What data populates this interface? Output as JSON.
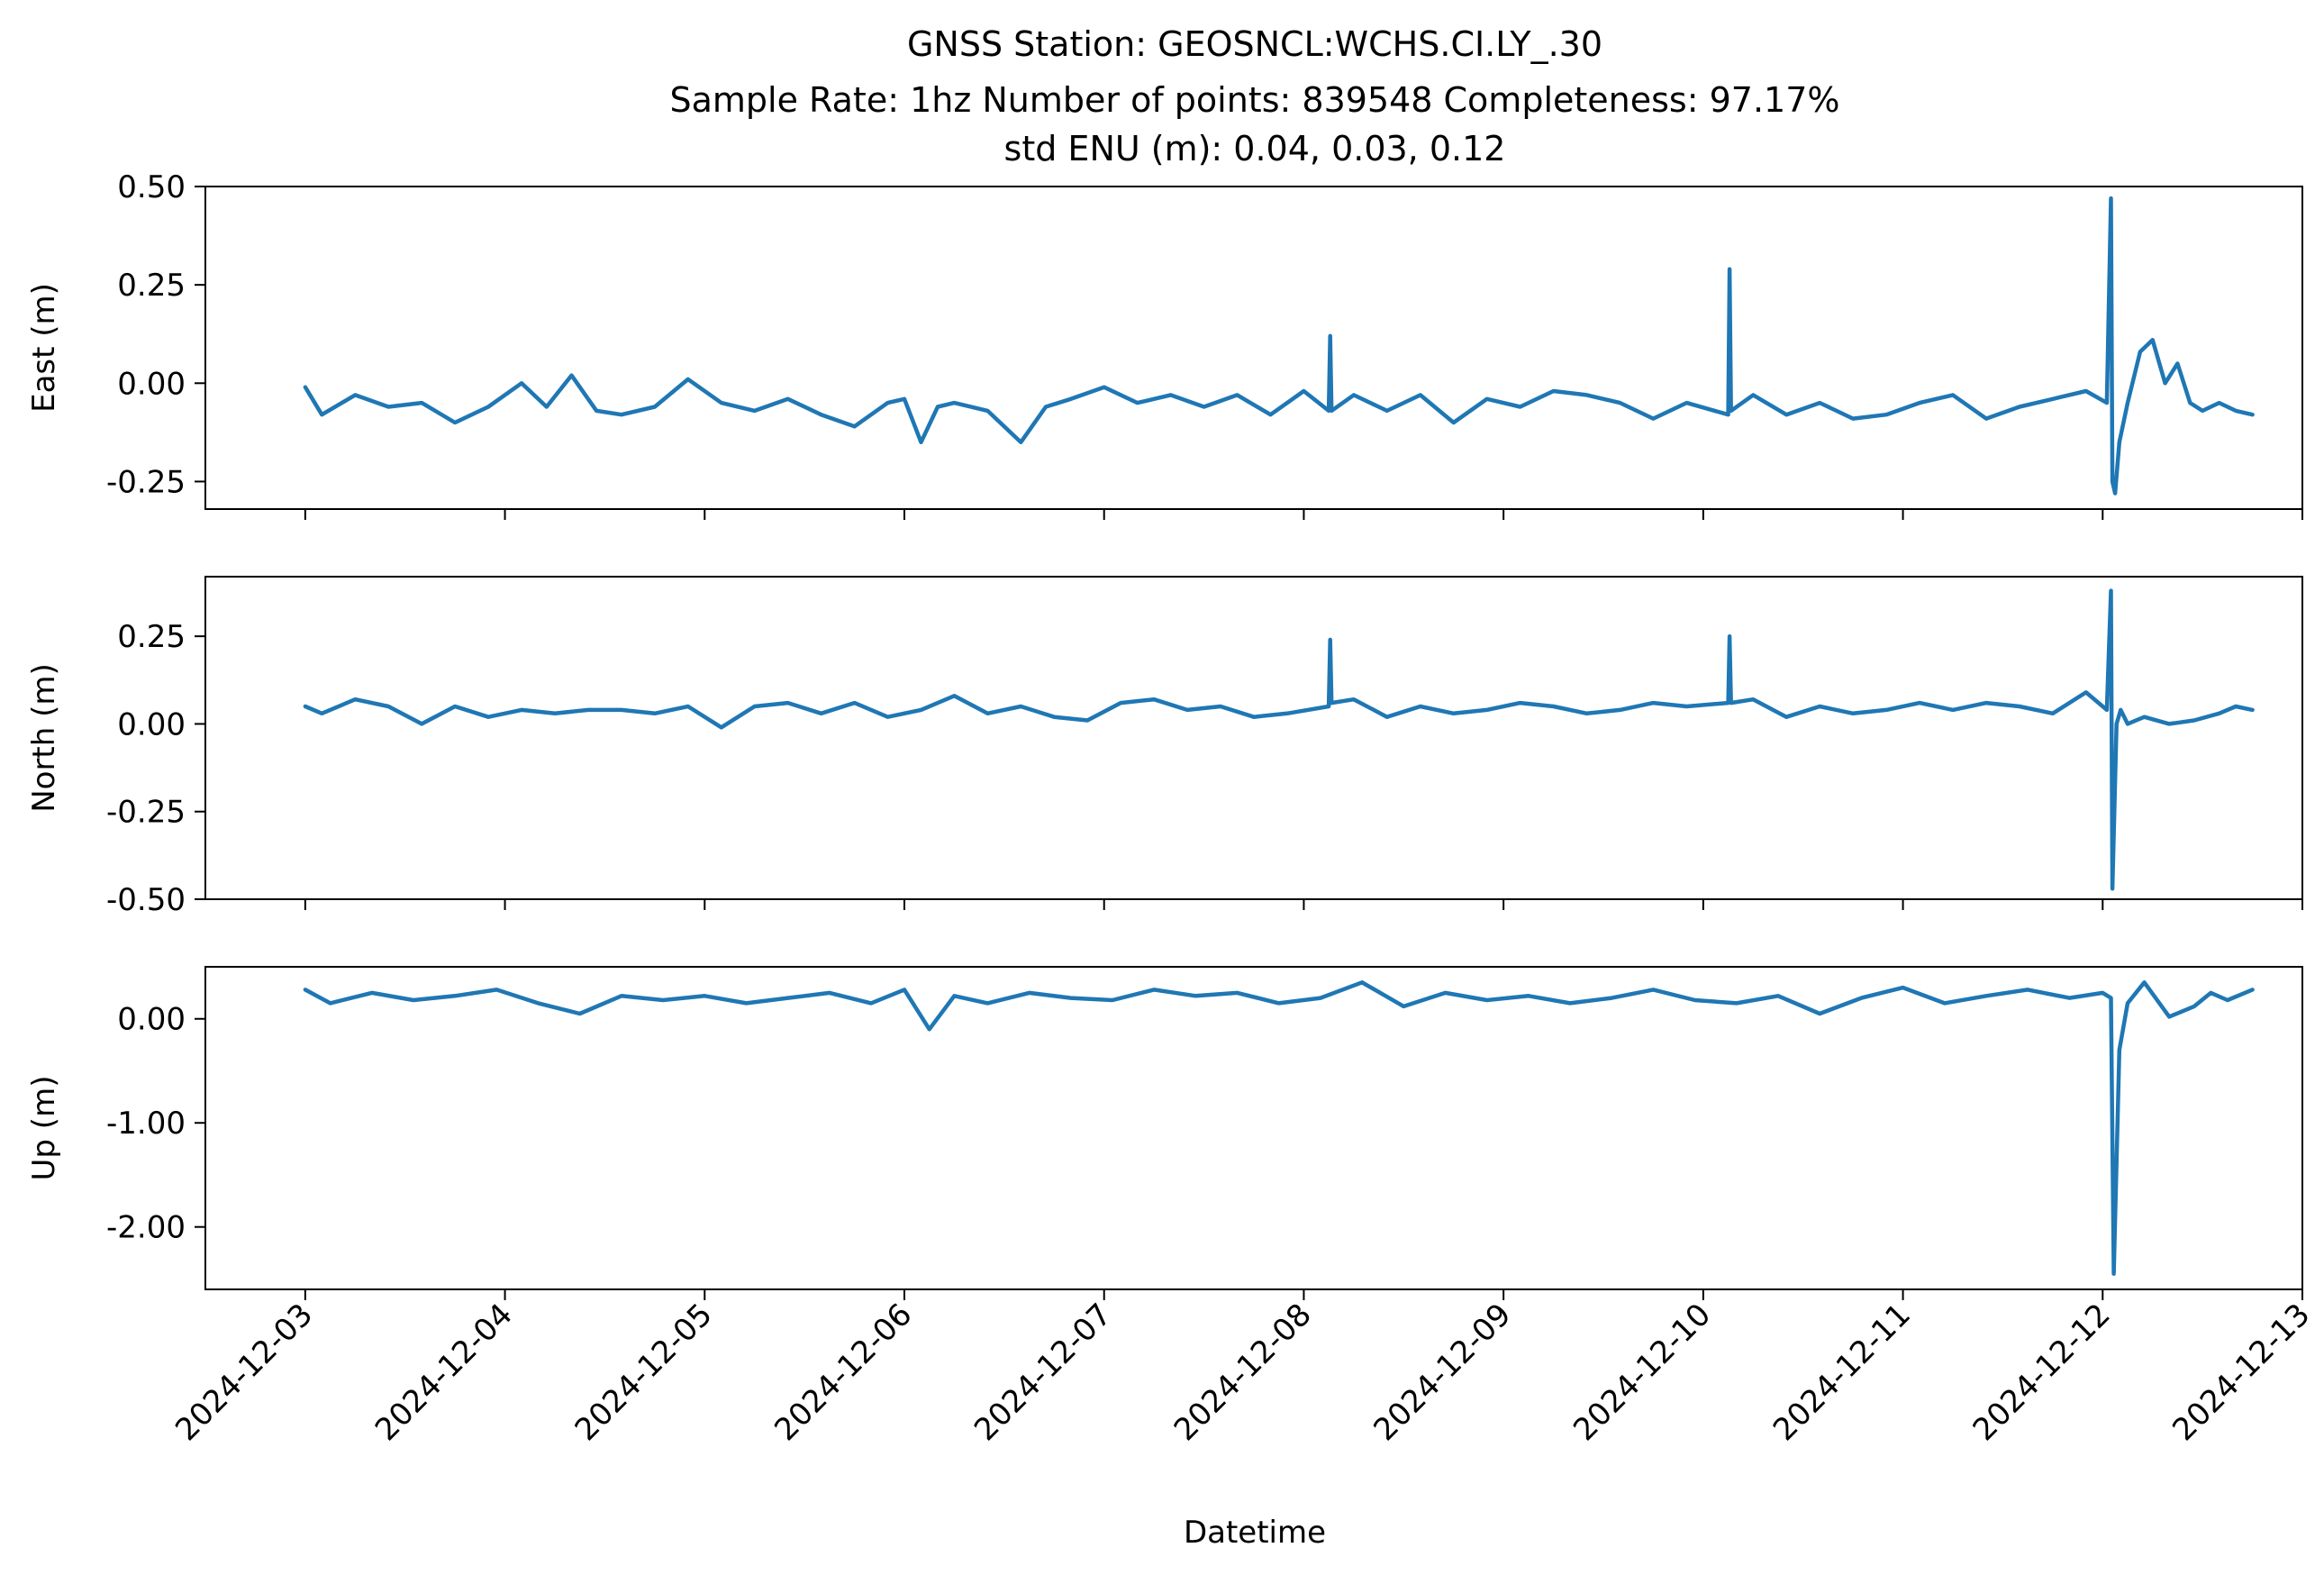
{
  "chart_data": {
    "type": "line",
    "title": "GNSS Station: GEOSNCL:WCHS.CI.LY_.30",
    "subtitle": "Sample Rate: 1hz   Number of points: 839548    Completeness:  97.17%",
    "std_line": "std ENU (m):  0.04, 0.03, 0.12",
    "xlabel": "Datetime",
    "x_range": [
      "2024-12-02T12:00",
      "2024-12-13T00:00"
    ],
    "x_ticks": [
      "2024-12-03",
      "2024-12-04",
      "2024-12-05",
      "2024-12-06",
      "2024-12-07",
      "2024-12-08",
      "2024-12-09",
      "2024-12-10",
      "2024-12-11",
      "2024-12-12",
      "2024-12-13"
    ],
    "line_color": "#1f77b4",
    "panels": [
      {
        "ylabel": "East (m)",
        "ylim": [
          -0.32,
          0.5
        ],
        "y_ticks": [
          0.5,
          0.25,
          0.0,
          -0.25
        ],
        "y_tick_labels": [
          "0.50",
          "0.25",
          "0.00",
          "-0.25"
        ],
        "series": {
          "x": [
            "2024-12-03T00:00",
            "2024-12-03T02:00",
            "2024-12-03T06:00",
            "2024-12-03T10:00",
            "2024-12-03T14:00",
            "2024-12-03T18:00",
            "2024-12-03T22:00",
            "2024-12-04T02:00",
            "2024-12-04T05:00",
            "2024-12-04T08:00",
            "2024-12-04T11:00",
            "2024-12-04T14:00",
            "2024-12-04T18:00",
            "2024-12-04T22:00",
            "2024-12-05T02:00",
            "2024-12-05T06:00",
            "2024-12-05T10:00",
            "2024-12-05T14:00",
            "2024-12-05T18:00",
            "2024-12-05T22:00",
            "2024-12-06T00:00",
            "2024-12-06T02:00",
            "2024-12-06T04:00",
            "2024-12-06T06:00",
            "2024-12-06T10:00",
            "2024-12-06T14:00",
            "2024-12-06T17:00",
            "2024-12-06T20:00",
            "2024-12-07T00:00",
            "2024-12-07T04:00",
            "2024-12-07T08:00",
            "2024-12-07T12:00",
            "2024-12-07T16:00",
            "2024-12-07T20:00",
            "2024-12-08T00:00",
            "2024-12-08T03:00",
            "2024-12-08T03:10",
            "2024-12-08T03:20",
            "2024-12-08T06:00",
            "2024-12-08T10:00",
            "2024-12-08T14:00",
            "2024-12-08T18:00",
            "2024-12-08T22:00",
            "2024-12-09T02:00",
            "2024-12-09T06:00",
            "2024-12-09T10:00",
            "2024-12-09T14:00",
            "2024-12-09T18:00",
            "2024-12-09T22:00",
            "2024-12-10T03:00",
            "2024-12-10T03:10",
            "2024-12-10T03:20",
            "2024-12-10T06:00",
            "2024-12-10T10:00",
            "2024-12-10T14:00",
            "2024-12-10T18:00",
            "2024-12-10T22:00",
            "2024-12-11T02:00",
            "2024-12-11T06:00",
            "2024-12-11T10:00",
            "2024-12-11T14:00",
            "2024-12-11T18:00",
            "2024-12-11T22:00",
            "2024-12-12T00:30",
            "2024-12-12T01:00",
            "2024-12-12T01:10",
            "2024-12-12T01:30",
            "2024-12-12T02:00",
            "2024-12-12T03:00",
            "2024-12-12T04:30",
            "2024-12-12T06:00",
            "2024-12-12T07:30",
            "2024-12-12T09:00",
            "2024-12-12T10:30",
            "2024-12-12T12:00",
            "2024-12-12T14:00",
            "2024-12-12T16:00",
            "2024-12-12T18:00"
          ],
          "values": [
            -0.01,
            -0.08,
            -0.03,
            -0.06,
            -0.05,
            -0.1,
            -0.06,
            0.0,
            -0.06,
            0.02,
            -0.07,
            -0.08,
            -0.06,
            0.01,
            -0.05,
            -0.07,
            -0.04,
            -0.08,
            -0.11,
            -0.05,
            -0.04,
            -0.15,
            -0.06,
            -0.05,
            -0.07,
            -0.15,
            -0.06,
            -0.04,
            -0.01,
            -0.05,
            -0.03,
            -0.06,
            -0.03,
            -0.08,
            -0.02,
            -0.07,
            0.12,
            -0.07,
            -0.03,
            -0.07,
            -0.03,
            -0.1,
            -0.04,
            -0.06,
            -0.02,
            -0.03,
            -0.05,
            -0.09,
            -0.05,
            -0.08,
            0.29,
            -0.07,
            -0.03,
            -0.08,
            -0.05,
            -0.09,
            -0.08,
            -0.05,
            -0.03,
            -0.09,
            -0.06,
            -0.04,
            -0.02,
            -0.05,
            0.47,
            -0.25,
            -0.28,
            -0.15,
            -0.05,
            0.08,
            0.11,
            0.0,
            0.05,
            -0.05,
            -0.07,
            -0.05,
            -0.07,
            -0.08
          ]
        }
      },
      {
        "ylabel": "North (m)",
        "ylim": [
          -0.5,
          0.42
        ],
        "y_ticks": [
          0.25,
          0.0,
          -0.25,
          -0.5
        ],
        "y_tick_labels": [
          "0.25",
          "0.00",
          "-0.25",
          "-0.50"
        ],
        "series": {
          "x": [
            "2024-12-03T00:00",
            "2024-12-03T02:00",
            "2024-12-03T06:00",
            "2024-12-03T10:00",
            "2024-12-03T14:00",
            "2024-12-03T18:00",
            "2024-12-03T22:00",
            "2024-12-04T02:00",
            "2024-12-04T06:00",
            "2024-12-04T10:00",
            "2024-12-04T14:00",
            "2024-12-04T18:00",
            "2024-12-04T22:00",
            "2024-12-05T02:00",
            "2024-12-05T06:00",
            "2024-12-05T10:00",
            "2024-12-05T14:00",
            "2024-12-05T18:00",
            "2024-12-05T22:00",
            "2024-12-06T02:00",
            "2024-12-06T06:00",
            "2024-12-06T10:00",
            "2024-12-06T14:00",
            "2024-12-06T18:00",
            "2024-12-06T22:00",
            "2024-12-07T02:00",
            "2024-12-07T06:00",
            "2024-12-07T10:00",
            "2024-12-07T14:00",
            "2024-12-07T18:00",
            "2024-12-07T22:00",
            "2024-12-08T03:00",
            "2024-12-08T03:10",
            "2024-12-08T03:20",
            "2024-12-08T06:00",
            "2024-12-08T10:00",
            "2024-12-08T14:00",
            "2024-12-08T18:00",
            "2024-12-08T22:00",
            "2024-12-09T02:00",
            "2024-12-09T06:00",
            "2024-12-09T10:00",
            "2024-12-09T14:00",
            "2024-12-09T18:00",
            "2024-12-09T22:00",
            "2024-12-10T03:00",
            "2024-12-10T03:10",
            "2024-12-10T03:20",
            "2024-12-10T06:00",
            "2024-12-10T10:00",
            "2024-12-10T14:00",
            "2024-12-10T18:00",
            "2024-12-10T22:00",
            "2024-12-11T02:00",
            "2024-12-11T06:00",
            "2024-12-11T10:00",
            "2024-12-11T14:00",
            "2024-12-11T18:00",
            "2024-12-11T22:00",
            "2024-12-12T00:30",
            "2024-12-12T01:00",
            "2024-12-12T01:10",
            "2024-12-12T01:40",
            "2024-12-12T02:10",
            "2024-12-12T03:00",
            "2024-12-12T05:00",
            "2024-12-12T08:00",
            "2024-12-12T11:00",
            "2024-12-12T14:00",
            "2024-12-12T16:00",
            "2024-12-12T18:00"
          ],
          "values": [
            0.05,
            0.03,
            0.07,
            0.05,
            0.0,
            0.05,
            0.02,
            0.04,
            0.03,
            0.04,
            0.04,
            0.03,
            0.05,
            -0.01,
            0.05,
            0.06,
            0.03,
            0.06,
            0.02,
            0.04,
            0.08,
            0.03,
            0.05,
            0.02,
            0.01,
            0.06,
            0.07,
            0.04,
            0.05,
            0.02,
            0.03,
            0.05,
            0.24,
            0.06,
            0.07,
            0.02,
            0.05,
            0.03,
            0.04,
            0.06,
            0.05,
            0.03,
            0.04,
            0.06,
            0.05,
            0.06,
            0.25,
            0.06,
            0.07,
            0.02,
            0.05,
            0.03,
            0.04,
            0.06,
            0.04,
            0.06,
            0.05,
            0.03,
            0.09,
            0.04,
            0.38,
            -0.47,
            0.0,
            0.04,
            0.0,
            0.02,
            0.0,
            0.01,
            0.03,
            0.05,
            0.04
          ]
        }
      },
      {
        "ylabel": "Up (m)",
        "ylim": [
          -2.6,
          0.5
        ],
        "y_ticks": [
          0.0,
          -1.0,
          -2.0
        ],
        "y_tick_labels": [
          "0.00",
          "-1.00",
          "-2.00"
        ],
        "series": {
          "x": [
            "2024-12-03T00:00",
            "2024-12-03T03:00",
            "2024-12-03T08:00",
            "2024-12-03T13:00",
            "2024-12-03T18:00",
            "2024-12-03T23:00",
            "2024-12-04T04:00",
            "2024-12-04T09:00",
            "2024-12-04T14:00",
            "2024-12-04T19:00",
            "2024-12-05T00:00",
            "2024-12-05T05:00",
            "2024-12-05T10:00",
            "2024-12-05T15:00",
            "2024-12-05T20:00",
            "2024-12-06T00:00",
            "2024-12-06T03:00",
            "2024-12-06T06:00",
            "2024-12-06T10:00",
            "2024-12-06T15:00",
            "2024-12-06T20:00",
            "2024-12-07T01:00",
            "2024-12-07T06:00",
            "2024-12-07T11:00",
            "2024-12-07T16:00",
            "2024-12-07T21:00",
            "2024-12-08T02:00",
            "2024-12-08T07:00",
            "2024-12-08T12:00",
            "2024-12-08T17:00",
            "2024-12-08T22:00",
            "2024-12-09T03:00",
            "2024-12-09T08:00",
            "2024-12-09T13:00",
            "2024-12-09T18:00",
            "2024-12-09T23:00",
            "2024-12-10T04:00",
            "2024-12-10T09:00",
            "2024-12-10T14:00",
            "2024-12-10T19:00",
            "2024-12-11T00:00",
            "2024-12-11T05:00",
            "2024-12-11T10:00",
            "2024-12-11T15:00",
            "2024-12-11T20:00",
            "2024-12-12T00:00",
            "2024-12-12T01:00",
            "2024-12-12T01:20",
            "2024-12-12T02:00",
            "2024-12-12T03:00",
            "2024-12-12T05:00",
            "2024-12-12T08:00",
            "2024-12-12T11:00",
            "2024-12-12T13:00",
            "2024-12-12T15:00",
            "2024-12-12T18:00"
          ],
          "values": [
            0.28,
            0.15,
            0.25,
            0.18,
            0.22,
            0.28,
            0.15,
            0.05,
            0.22,
            0.18,
            0.22,
            0.15,
            0.2,
            0.25,
            0.15,
            0.28,
            -0.1,
            0.22,
            0.15,
            0.25,
            0.2,
            0.18,
            0.28,
            0.22,
            0.25,
            0.15,
            0.2,
            0.35,
            0.12,
            0.25,
            0.18,
            0.22,
            0.15,
            0.2,
            0.28,
            0.18,
            0.15,
            0.22,
            0.05,
            0.2,
            0.3,
            0.15,
            0.22,
            0.28,
            0.2,
            0.25,
            0.2,
            -2.45,
            -0.3,
            0.15,
            0.35,
            0.02,
            0.12,
            0.25,
            0.18,
            0.28
          ]
        }
      }
    ]
  }
}
